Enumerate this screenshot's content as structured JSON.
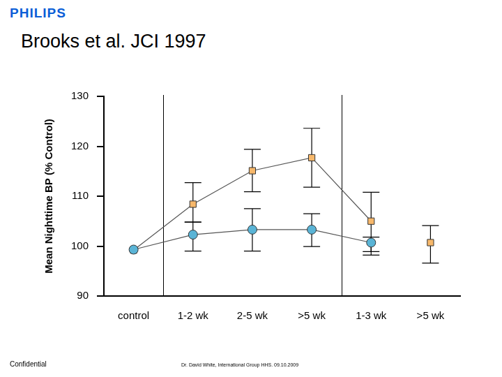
{
  "slide": {
    "logo": "PHILIPS",
    "footer_left": "Confidential",
    "footer_center": "Dr. David White, International Group HHS. 09.10.2009"
  },
  "chart_data": {
    "type": "line",
    "title": "Brooks et al. JCI 1997",
    "y_label": "Mean Nighttime BP (% Control)",
    "categories": [
      "control",
      "1-2 wk",
      "2-5 wk",
      ">5 wk",
      "1-3 wk",
      ">5 wk"
    ],
    "series": [
      {
        "color": "#5ab4d6",
        "marker": "circle",
        "line_style": "solid",
        "values": [
          99.3,
          102.3,
          103.3,
          103.3,
          100.7,
          null
        ],
        "error_low": [
          null,
          99.0,
          99.0,
          99.9,
          98.2,
          null
        ],
        "error_high": [
          null,
          104.8,
          107.5,
          106.5,
          101.8,
          null
        ]
      },
      {
        "color": "#f7b86b",
        "marker": "square",
        "line_style": "solid",
        "values": [
          99.2,
          108.4,
          115.1,
          117.7,
          105.0,
          null
        ],
        "error_low": [
          null,
          104.8,
          110.9,
          111.8,
          98.9,
          null
        ],
        "error_high": [
          null,
          112.7,
          119.4,
          123.6,
          110.8,
          null
        ]
      },
      {
        "color": "#f7b86b",
        "marker": "square",
        "line_style": "none",
        "values": [
          null,
          null,
          null,
          null,
          null,
          100.7
        ],
        "error_low": [
          null,
          null,
          null,
          null,
          null,
          96.6
        ],
        "error_high": [
          null,
          null,
          null,
          null,
          null,
          104.1
        ]
      }
    ],
    "ylim": [
      90,
      130
    ],
    "yticks": [
      90,
      100,
      110,
      120,
      130
    ],
    "grid": false
  }
}
